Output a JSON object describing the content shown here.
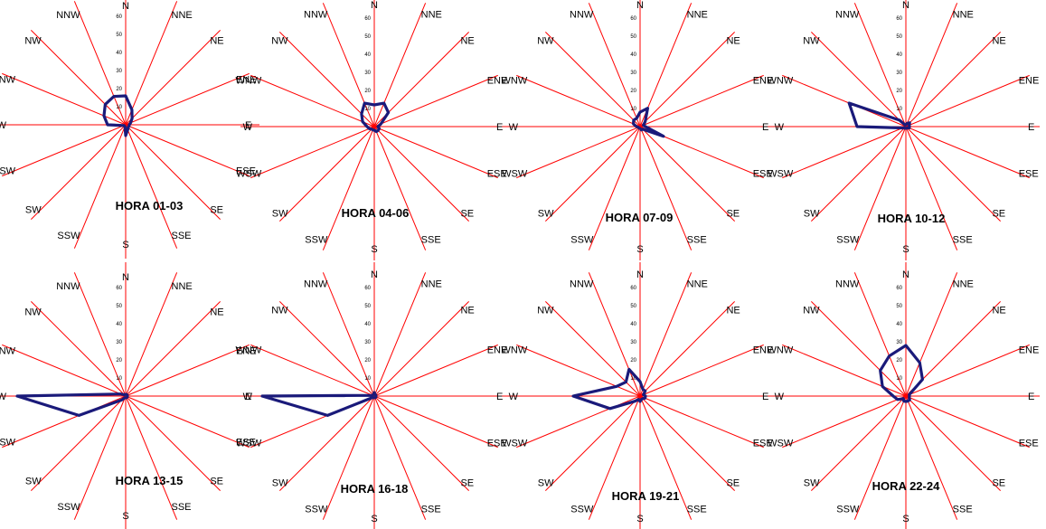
{
  "chart_data": {
    "type": "radar",
    "directions": [
      "N",
      "NNE",
      "NE",
      "ENE",
      "E",
      "ESE",
      "SE",
      "SSE",
      "S",
      "SSW",
      "SW",
      "WSW",
      "W",
      "WNW",
      "NW",
      "NNW"
    ],
    "rlim": [
      0,
      60
    ],
    "ticks": [
      "10",
      "20",
      "30",
      "40",
      "50",
      "60"
    ],
    "grid": "radial spokes only",
    "charts": [
      {
        "title": "HORA 01-03",
        "values": [
          16,
          9,
          5,
          3,
          2,
          2,
          2,
          3,
          6,
          1,
          1,
          1,
          10,
          13,
          16,
          17
        ]
      },
      {
        "title": "HORA 04-06",
        "values": [
          12,
          14,
          11,
          4,
          2,
          3,
          3,
          3,
          2,
          2,
          2,
          3,
          4,
          7,
          10,
          14
        ]
      },
      {
        "title": "HORA 07-09",
        "values": [
          8,
          11,
          4,
          2,
          3,
          14,
          2,
          2,
          1,
          1,
          1,
          1,
          2,
          4,
          5,
          5
        ]
      },
      {
        "title": "HORA 10-12",
        "values": [
          1,
          2,
          3,
          2,
          2,
          2,
          1,
          1,
          1,
          1,
          1,
          2,
          27,
          34,
          5,
          1
        ]
      },
      {
        "title": "HORA 13-15",
        "values": [
          1,
          1,
          1,
          1,
          1,
          1,
          1,
          1,
          1,
          1,
          3,
          28,
          60,
          3,
          1,
          1
        ]
      },
      {
        "title": "HORA 16-18",
        "values": [
          2,
          1,
          1,
          1,
          1,
          1,
          1,
          1,
          1,
          1,
          1,
          28,
          62,
          1,
          1,
          1
        ]
      },
      {
        "title": "HORA 19-21",
        "values": [
          8,
          4,
          4,
          2,
          3,
          3,
          2,
          2,
          3,
          2,
          4,
          18,
          37,
          14,
          11,
          16
        ]
      },
      {
        "title": "HORA 22-24",
        "values": [
          28,
          20,
          13,
          2,
          2,
          2,
          3,
          3,
          3,
          3,
          2,
          5,
          7,
          14,
          20,
          24
        ]
      }
    ]
  }
}
